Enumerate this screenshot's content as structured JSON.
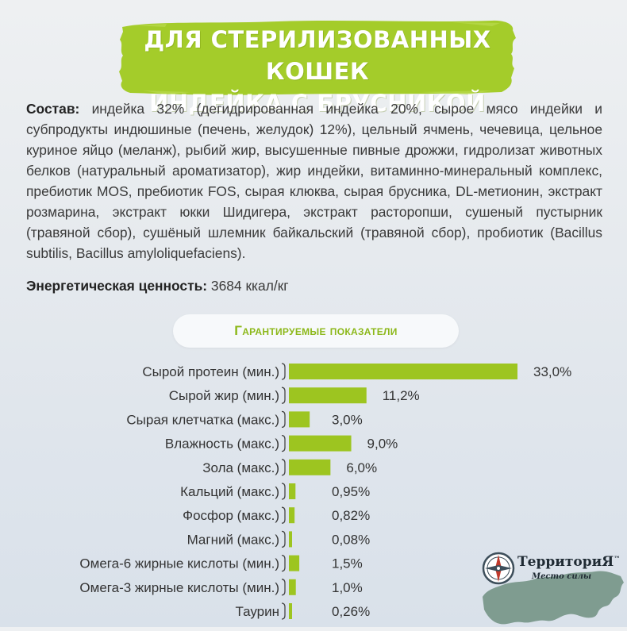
{
  "header": {
    "line1": "Для стерилизованных кошек",
    "line2": "индейка с брусникой"
  },
  "composition": {
    "label": "Состав:",
    "text": "индейка 32% (дегидрированная индейка 20%, сырое мясо индейки и субпродукты индюшиные (печень, желудок) 12%), цельный ячмень, чечевица, цельное куриное яйцо (меланж), рыбий жир, высушенные пивные дрожжи, гидролизат животных белков (натуральный ароматизатор), жир индейки, витаминно-минеральный комплекс, пребиотик MOS, пребиотик FOS, сырая клюква, сырая брусника, DL-метионин, экстракт розмарина, экстракт юкки Шидигера, экстракт расторопши, сушеный пустырник (травяной сбор), сушёный шлемник байкальский (травяной сбор), пробиотик (Bacillus subtilis, Bacillus amyloliquefaciens)."
  },
  "energy": {
    "label": "Энергетическая ценность:",
    "value": "3684 ккал/кг"
  },
  "chart_data": {
    "type": "bar",
    "orientation": "horizontal",
    "title": "Гарантируемые показатели",
    "categories": [
      "Сырой протеин (мин.)",
      "Сырой жир (мин.)",
      "Сырая клетчатка (макс.)",
      "Влажность (макс.)",
      "Зола (макс.)",
      "Кальций (макс.)",
      "Фосфор (макс.)",
      "Магний (макс.)",
      "Омега-6 жирные кислоты (мин.)",
      "Омега-3 жирные кислоты (мин.)",
      "Таурин"
    ],
    "values": [
      33.0,
      11.2,
      3.0,
      9.0,
      6.0,
      0.95,
      0.82,
      0.08,
      1.5,
      1.0,
      0.26
    ],
    "value_labels": [
      "33,0%",
      "11,2%",
      "3,0%",
      "9,0%",
      "6,0%",
      "0,95%",
      "0,82%",
      "0,08%",
      "1,5%",
      "1,0%",
      "0,26%"
    ],
    "xlim": [
      0,
      33
    ],
    "grid": false,
    "bar_color": "#9dc520"
  },
  "logo": {
    "brand": "ТерриториЯ",
    "tm": "™",
    "tagline": "Место силы"
  },
  "colors": {
    "accent_green": "#9dc520",
    "header_green": "#a4cc2a"
  }
}
